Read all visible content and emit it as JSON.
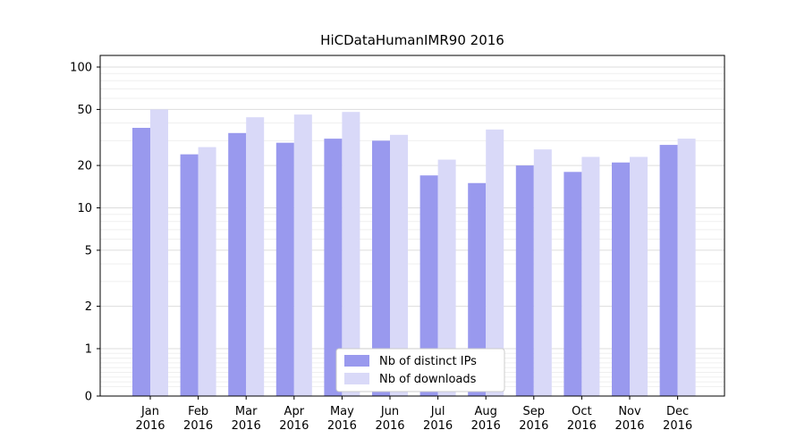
{
  "chart_data": {
    "type": "bar",
    "title": "HiCDataHumanIMR90 2016",
    "xlabel": "",
    "ylabel": "",
    "yscale": "symlog",
    "ylim": [
      0,
      120
    ],
    "grid": true,
    "legend_position": "lower center",
    "categories": [
      "Jan",
      "Feb",
      "Mar",
      "Apr",
      "May",
      "Jun",
      "Jul",
      "Aug",
      "Sep",
      "Oct",
      "Nov",
      "Dec"
    ],
    "year": "2016",
    "yticks": [
      0,
      1,
      2,
      5,
      10,
      20,
      50,
      100
    ],
    "series": [
      {
        "name": "Nb of distinct IPs",
        "color": "#9999ee",
        "values": [
          37,
          24,
          34,
          29,
          31,
          30,
          17,
          15,
          20,
          18,
          21,
          28
        ]
      },
      {
        "name": "Nb of downloads",
        "color": "#d9d9f8",
        "values": [
          50,
          27,
          44,
          46,
          48,
          33,
          22,
          36,
          26,
          23,
          23,
          31
        ]
      }
    ]
  }
}
